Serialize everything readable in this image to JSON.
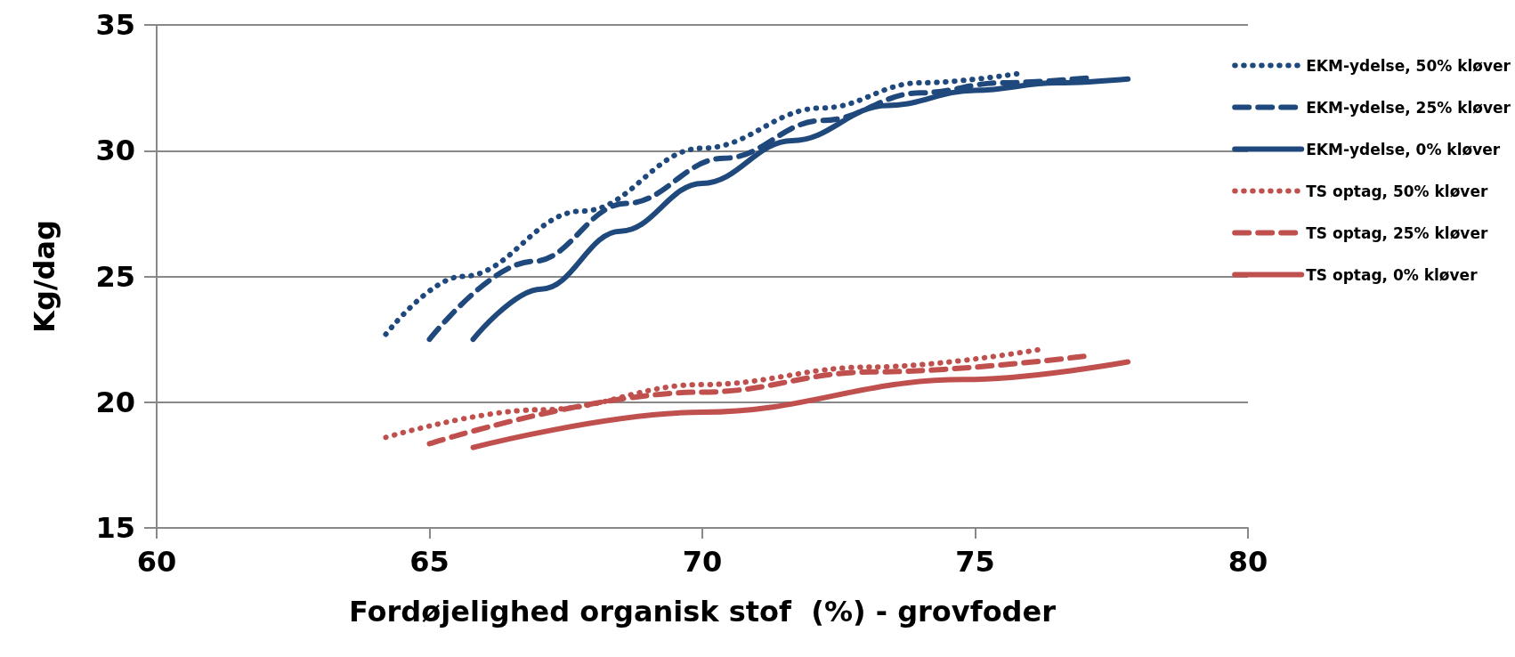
{
  "chart_data": {
    "type": "line",
    "xlabel": "Fordøjelighed organisk stof  (%) - grovfoder",
    "ylabel": "Kg/dag",
    "xlim": [
      60,
      80
    ],
    "xticks": [
      60,
      65,
      70,
      75,
      80
    ],
    "ylim": [
      15,
      35
    ],
    "yticks": [
      15,
      20,
      25,
      30,
      35
    ],
    "grid": "y",
    "legend": "right",
    "marker": "none",
    "series": [
      {
        "name": "EKM-ydelse, 50% kløver",
        "color": "#1f497d",
        "line_style": "dotted",
        "x": [
          64.2,
          65.6,
          67.8,
          70,
          72.2,
          74,
          75.9
        ],
        "values": [
          22.7,
          25.0,
          27.6,
          30.1,
          31.7,
          32.7,
          33.1
        ]
      },
      {
        "name": "EKM-ydelse, 25% kløver",
        "color": "#1f497d",
        "line_style": "dashed",
        "x": [
          65.0,
          66.9,
          68.6,
          70.4,
          72.2,
          74,
          75.5,
          77.1
        ],
        "values": [
          22.5,
          25.6,
          27.9,
          29.7,
          31.2,
          32.3,
          32.7,
          32.9
        ]
      },
      {
        "name": "EKM-ydelse, 0% kløver",
        "color": "#1f497d",
        "line_style": "solid",
        "x": [
          65.8,
          67.05,
          68.5,
          70,
          71.65,
          73.4,
          75,
          76.5,
          77.8
        ],
        "values": [
          22.5,
          24.5,
          26.8,
          28.7,
          30.4,
          31.8,
          32.4,
          32.7,
          32.85
        ]
      },
      {
        "name": "TS optag, 50% kløver",
        "color": "#c0504d",
        "line_style": "dotted",
        "x": [
          64.2,
          67.05,
          70,
          73.1,
          76.2
        ],
        "values": [
          18.6,
          19.7,
          20.7,
          21.4,
          22.1
        ]
      },
      {
        "name": "TS optag, 25% kløver",
        "color": "#c0504d",
        "line_style": "dashed",
        "x": [
          65.0,
          70,
          73.1,
          77.1
        ],
        "values": [
          18.35,
          20.4,
          21.2,
          21.85
        ]
      },
      {
        "name": "TS optag, 0% kløver",
        "color": "#c0504d",
        "line_style": "solid",
        "x": [
          65.8,
          70,
          74.8,
          77.8
        ],
        "values": [
          18.2,
          19.6,
          20.9,
          21.6
        ]
      }
    ]
  }
}
